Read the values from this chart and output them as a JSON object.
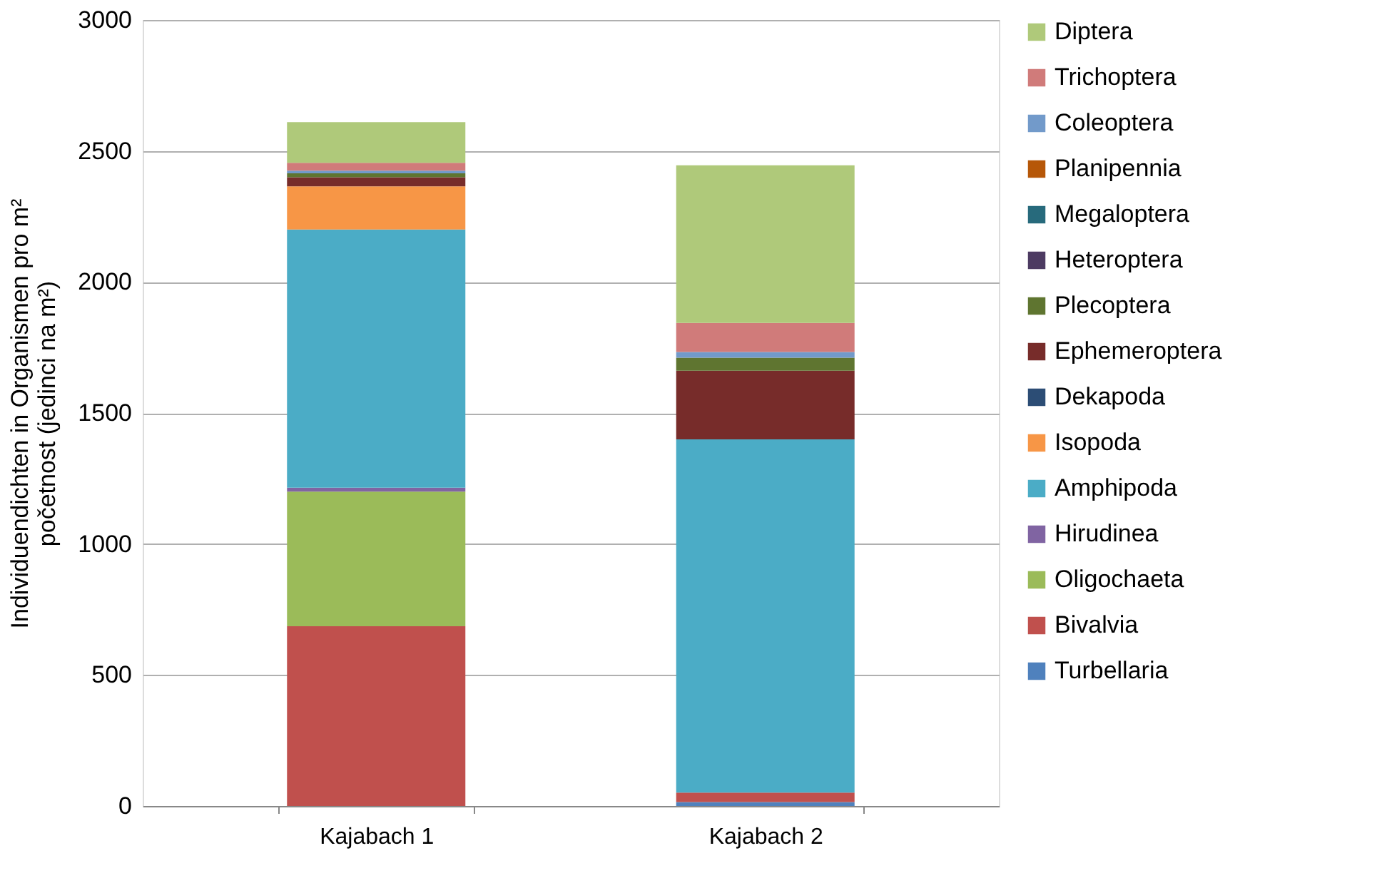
{
  "chart_data": {
    "type": "bar",
    "stacked": true,
    "ylabel": "Individuendichten in Organismen pro m²\npočetnost (jedinci na m²)",
    "categories": [
      "Kajabach 1",
      "Kajabach 2"
    ],
    "ylim": [
      0,
      3000
    ],
    "yticks": [
      0,
      500,
      1000,
      1500,
      2000,
      2500,
      3000
    ],
    "grid": "y",
    "legend": "right",
    "series": [
      {
        "name": "Turbellaria",
        "color": "#4f81bd",
        "values": [
          0,
          15
        ]
      },
      {
        "name": "Bivalvia",
        "color": "#c0504d",
        "values": [
          686,
          36
        ]
      },
      {
        "name": "Oligochaeta",
        "color": "#9bbb59",
        "values": [
          514,
          0
        ]
      },
      {
        "name": "Hirudinea",
        "color": "#8064a2",
        "values": [
          15,
          0
        ]
      },
      {
        "name": "Amphipoda",
        "color": "#4bacc6",
        "values": [
          985,
          1348
        ]
      },
      {
        "name": "Isopoda",
        "color": "#f79646",
        "values": [
          165,
          0
        ]
      },
      {
        "name": "Dekapoda",
        "color": "#2c4d75",
        "values": [
          0,
          0
        ]
      },
      {
        "name": "Ephemeroptera",
        "color": "#772c2a",
        "values": [
          35,
          262
        ]
      },
      {
        "name": "Plecoptera",
        "color": "#5f7530",
        "values": [
          15,
          50
        ]
      },
      {
        "name": "Heteroptera",
        "color": "#4d3b62",
        "values": [
          0,
          0
        ]
      },
      {
        "name": "Megaloptera",
        "color": "#276a7c",
        "values": [
          0,
          0
        ]
      },
      {
        "name": "Planipennia",
        "color": "#b65708",
        "values": [
          0,
          0
        ]
      },
      {
        "name": "Coleoptera",
        "color": "#729aca",
        "values": [
          10,
          22
        ]
      },
      {
        "name": "Trichoptera",
        "color": "#d07b7a",
        "values": [
          30,
          111
        ]
      },
      {
        "name": "Diptera",
        "color": "#afc97a",
        "values": [
          155,
          601
        ]
      }
    ]
  }
}
